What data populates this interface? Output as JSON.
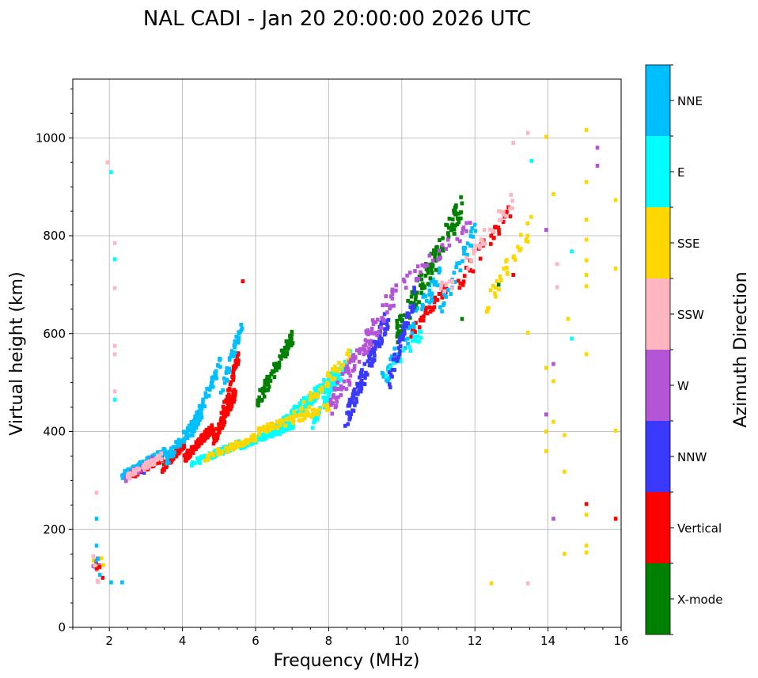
{
  "chart_data": {
    "type": "scatter",
    "title": "NAL CADI - Jan 20 20:00:00 2026 UTC",
    "xlabel": "Frequency (MHz)",
    "ylabel": "Virtual height (km)",
    "xlim": [
      1,
      16
    ],
    "ylim": [
      0,
      1120
    ],
    "xticks": [
      2,
      4,
      6,
      8,
      10,
      12,
      14,
      16
    ],
    "yticks": [
      0,
      200,
      400,
      600,
      800,
      1000
    ],
    "grid": true,
    "colorbar": {
      "label": "Azimuth Direction",
      "categories": [
        {
          "name": "X-mode",
          "color": "#008000"
        },
        {
          "name": "Vertical",
          "color": "#ff0000"
        },
        {
          "name": "NNW",
          "color": "#3a3aff"
        },
        {
          "name": "W",
          "color": "#b455d8"
        },
        {
          "name": "SSW",
          "color": "#ffb6c1"
        },
        {
          "name": "SSE",
          "color": "#ffd700"
        },
        {
          "name": "E",
          "color": "#00ffff"
        },
        {
          "name": "NNE",
          "color": "#00bfff"
        }
      ]
    },
    "cell_size": {
      "df": 0.1,
      "dh": 8
    },
    "series": [
      {
        "name": "Vertical",
        "traces": [
          {
            "f1": 2.6,
            "f2": 3.4,
            "h1": 312,
            "h2": 345,
            "n": 20
          },
          {
            "f1": 3.4,
            "f2": 4.0,
            "h1": 325,
            "h2": 375,
            "n": 22
          },
          {
            "f1": 4.0,
            "f2": 4.8,
            "h1": 345,
            "h2": 410,
            "n": 30
          },
          {
            "f1": 4.8,
            "f2": 5.4,
            "h1": 380,
            "h2": 480,
            "n": 26
          },
          {
            "f1": 5.0,
            "f2": 5.5,
            "h1": 420,
            "h2": 560,
            "n": 14
          },
          {
            "f1": 10.2,
            "f2": 11.2,
            "h1": 600,
            "h2": 700,
            "n": 10
          },
          {
            "f1": 11.5,
            "f2": 13.0,
            "h1": 700,
            "h2": 860,
            "n": 9
          }
        ],
        "points": [
          [
            5.6,
            707
          ],
          [
            15.0,
            252
          ],
          [
            15.8,
            222
          ],
          [
            13.0,
            720
          ]
        ]
      },
      {
        "name": "NNE",
        "traces": [
          {
            "f1": 2.3,
            "f2": 3.5,
            "h1": 310,
            "h2": 360,
            "n": 22
          },
          {
            "f1": 3.5,
            "f2": 4.5,
            "h1": 340,
            "h2": 440,
            "n": 22
          },
          {
            "f1": 4.2,
            "f2": 5.0,
            "h1": 400,
            "h2": 540,
            "n": 18
          },
          {
            "f1": 5.0,
            "f2": 5.6,
            "h1": 480,
            "h2": 620,
            "n": 10
          },
          {
            "f1": 9.4,
            "f2": 11.0,
            "h1": 500,
            "h2": 720,
            "n": 14
          },
          {
            "f1": 11.0,
            "f2": 12.0,
            "h1": 650,
            "h2": 820,
            "n": 8
          }
        ],
        "points": [
          [
            1.6,
            167
          ],
          [
            1.6,
            222
          ],
          [
            2.0,
            92
          ],
          [
            2.3,
            92
          ]
        ]
      },
      {
        "name": "E",
        "traces": [
          {
            "f1": 4.2,
            "f2": 5.5,
            "h1": 335,
            "h2": 375,
            "n": 20
          },
          {
            "f1": 5.5,
            "f2": 7.0,
            "h1": 370,
            "h2": 415,
            "n": 30
          },
          {
            "f1": 6.5,
            "f2": 8.2,
            "h1": 400,
            "h2": 520,
            "n": 34
          },
          {
            "f1": 7.5,
            "f2": 8.6,
            "h1": 420,
            "h2": 560,
            "n": 18
          },
          {
            "f1": 9.5,
            "f2": 10.5,
            "h1": 520,
            "h2": 600,
            "n": 6
          }
        ],
        "points": [
          [
            2.0,
            930
          ],
          [
            2.1,
            752
          ],
          [
            2.1,
            465
          ],
          [
            13.5,
            953
          ],
          [
            14.6,
            590
          ],
          [
            14.6,
            768
          ]
        ]
      },
      {
        "name": "SSE",
        "traces": [
          {
            "f1": 4.5,
            "f2": 6.0,
            "h1": 345,
            "h2": 390,
            "n": 16
          },
          {
            "f1": 6.0,
            "f2": 8.0,
            "h1": 400,
            "h2": 450,
            "n": 18
          },
          {
            "f1": 7.0,
            "f2": 8.6,
            "h1": 430,
            "h2": 560,
            "n": 12
          },
          {
            "f1": 12.2,
            "f2": 13.5,
            "h1": 650,
            "h2": 830,
            "n": 8
          }
        ],
        "points": [
          [
            13.9,
            1002
          ],
          [
            14.1,
            885
          ],
          [
            15.0,
            1016
          ],
          [
            15.0,
            910
          ],
          [
            15.0,
            833
          ],
          [
            15.0,
            792
          ],
          [
            15.0,
            750
          ],
          [
            15.0,
            720
          ],
          [
            15.0,
            697
          ],
          [
            15.0,
            558
          ],
          [
            15.0,
            230
          ],
          [
            15.0,
            167
          ],
          [
            15.0,
            153
          ],
          [
            14.5,
            630
          ],
          [
            14.4,
            150
          ],
          [
            14.4,
            318
          ],
          [
            14.4,
            393
          ],
          [
            13.9,
            530
          ],
          [
            13.9,
            400
          ],
          [
            13.9,
            360
          ],
          [
            14.1,
            503
          ],
          [
            14.1,
            420
          ],
          [
            15.8,
            873
          ],
          [
            15.8,
            733
          ],
          [
            15.8,
            402
          ],
          [
            12.4,
            90
          ],
          [
            13.4,
            602
          ],
          [
            13.4,
            788
          ]
        ]
      },
      {
        "name": "X-mode",
        "traces": [
          {
            "f1": 6.0,
            "f2": 7.0,
            "h1": 460,
            "h2": 600,
            "n": 20
          },
          {
            "f1": 9.8,
            "f2": 11.6,
            "h1": 600,
            "h2": 860,
            "n": 30
          }
        ],
        "points": [
          [
            12.6,
            700
          ],
          [
            11.6,
            630
          ]
        ]
      },
      {
        "name": "NNW",
        "traces": [
          {
            "f1": 8.4,
            "f2": 9.6,
            "h1": 420,
            "h2": 640,
            "n": 28
          },
          {
            "f1": 9.6,
            "f2": 10.3,
            "h1": 500,
            "h2": 680,
            "n": 12
          }
        ],
        "points": [
          [
            3.0,
            330
          ],
          [
            2.9,
            316
          ]
        ]
      },
      {
        "name": "W",
        "traces": [
          {
            "f1": 2.4,
            "f2": 3.2,
            "h1": 305,
            "h2": 345,
            "n": 10
          },
          {
            "f1": 8.0,
            "f2": 9.8,
            "h1": 450,
            "h2": 690,
            "n": 26
          },
          {
            "f1": 10.0,
            "f2": 12.0,
            "h1": 700,
            "h2": 830,
            "n": 8
          }
        ],
        "points": [
          [
            15.3,
            980
          ],
          [
            15.3,
            943
          ],
          [
            13.9,
            435
          ],
          [
            14.1,
            538
          ],
          [
            14.1,
            222
          ],
          [
            13.9,
            812
          ]
        ]
      },
      {
        "name": "SSW",
        "traces": [
          {
            "f1": 2.4,
            "f2": 3.4,
            "h1": 305,
            "h2": 350,
            "n": 12
          },
          {
            "f1": 11.0,
            "f2": 13.0,
            "h1": 680,
            "h2": 870,
            "n": 10
          }
        ],
        "points": [
          [
            1.9,
            950
          ],
          [
            2.1,
            785
          ],
          [
            2.1,
            693
          ],
          [
            2.1,
            575
          ],
          [
            2.1,
            558
          ],
          [
            2.1,
            482
          ],
          [
            1.6,
            275
          ],
          [
            13.0,
            990
          ],
          [
            13.4,
            1010
          ],
          [
            14.2,
            742
          ],
          [
            14.2,
            695
          ],
          [
            13.4,
            90
          ]
        ]
      }
    ],
    "low_cluster": {
      "f1": 1.5,
      "f2": 1.8,
      "h1": 90,
      "h2": 150,
      "n": 22
    }
  }
}
